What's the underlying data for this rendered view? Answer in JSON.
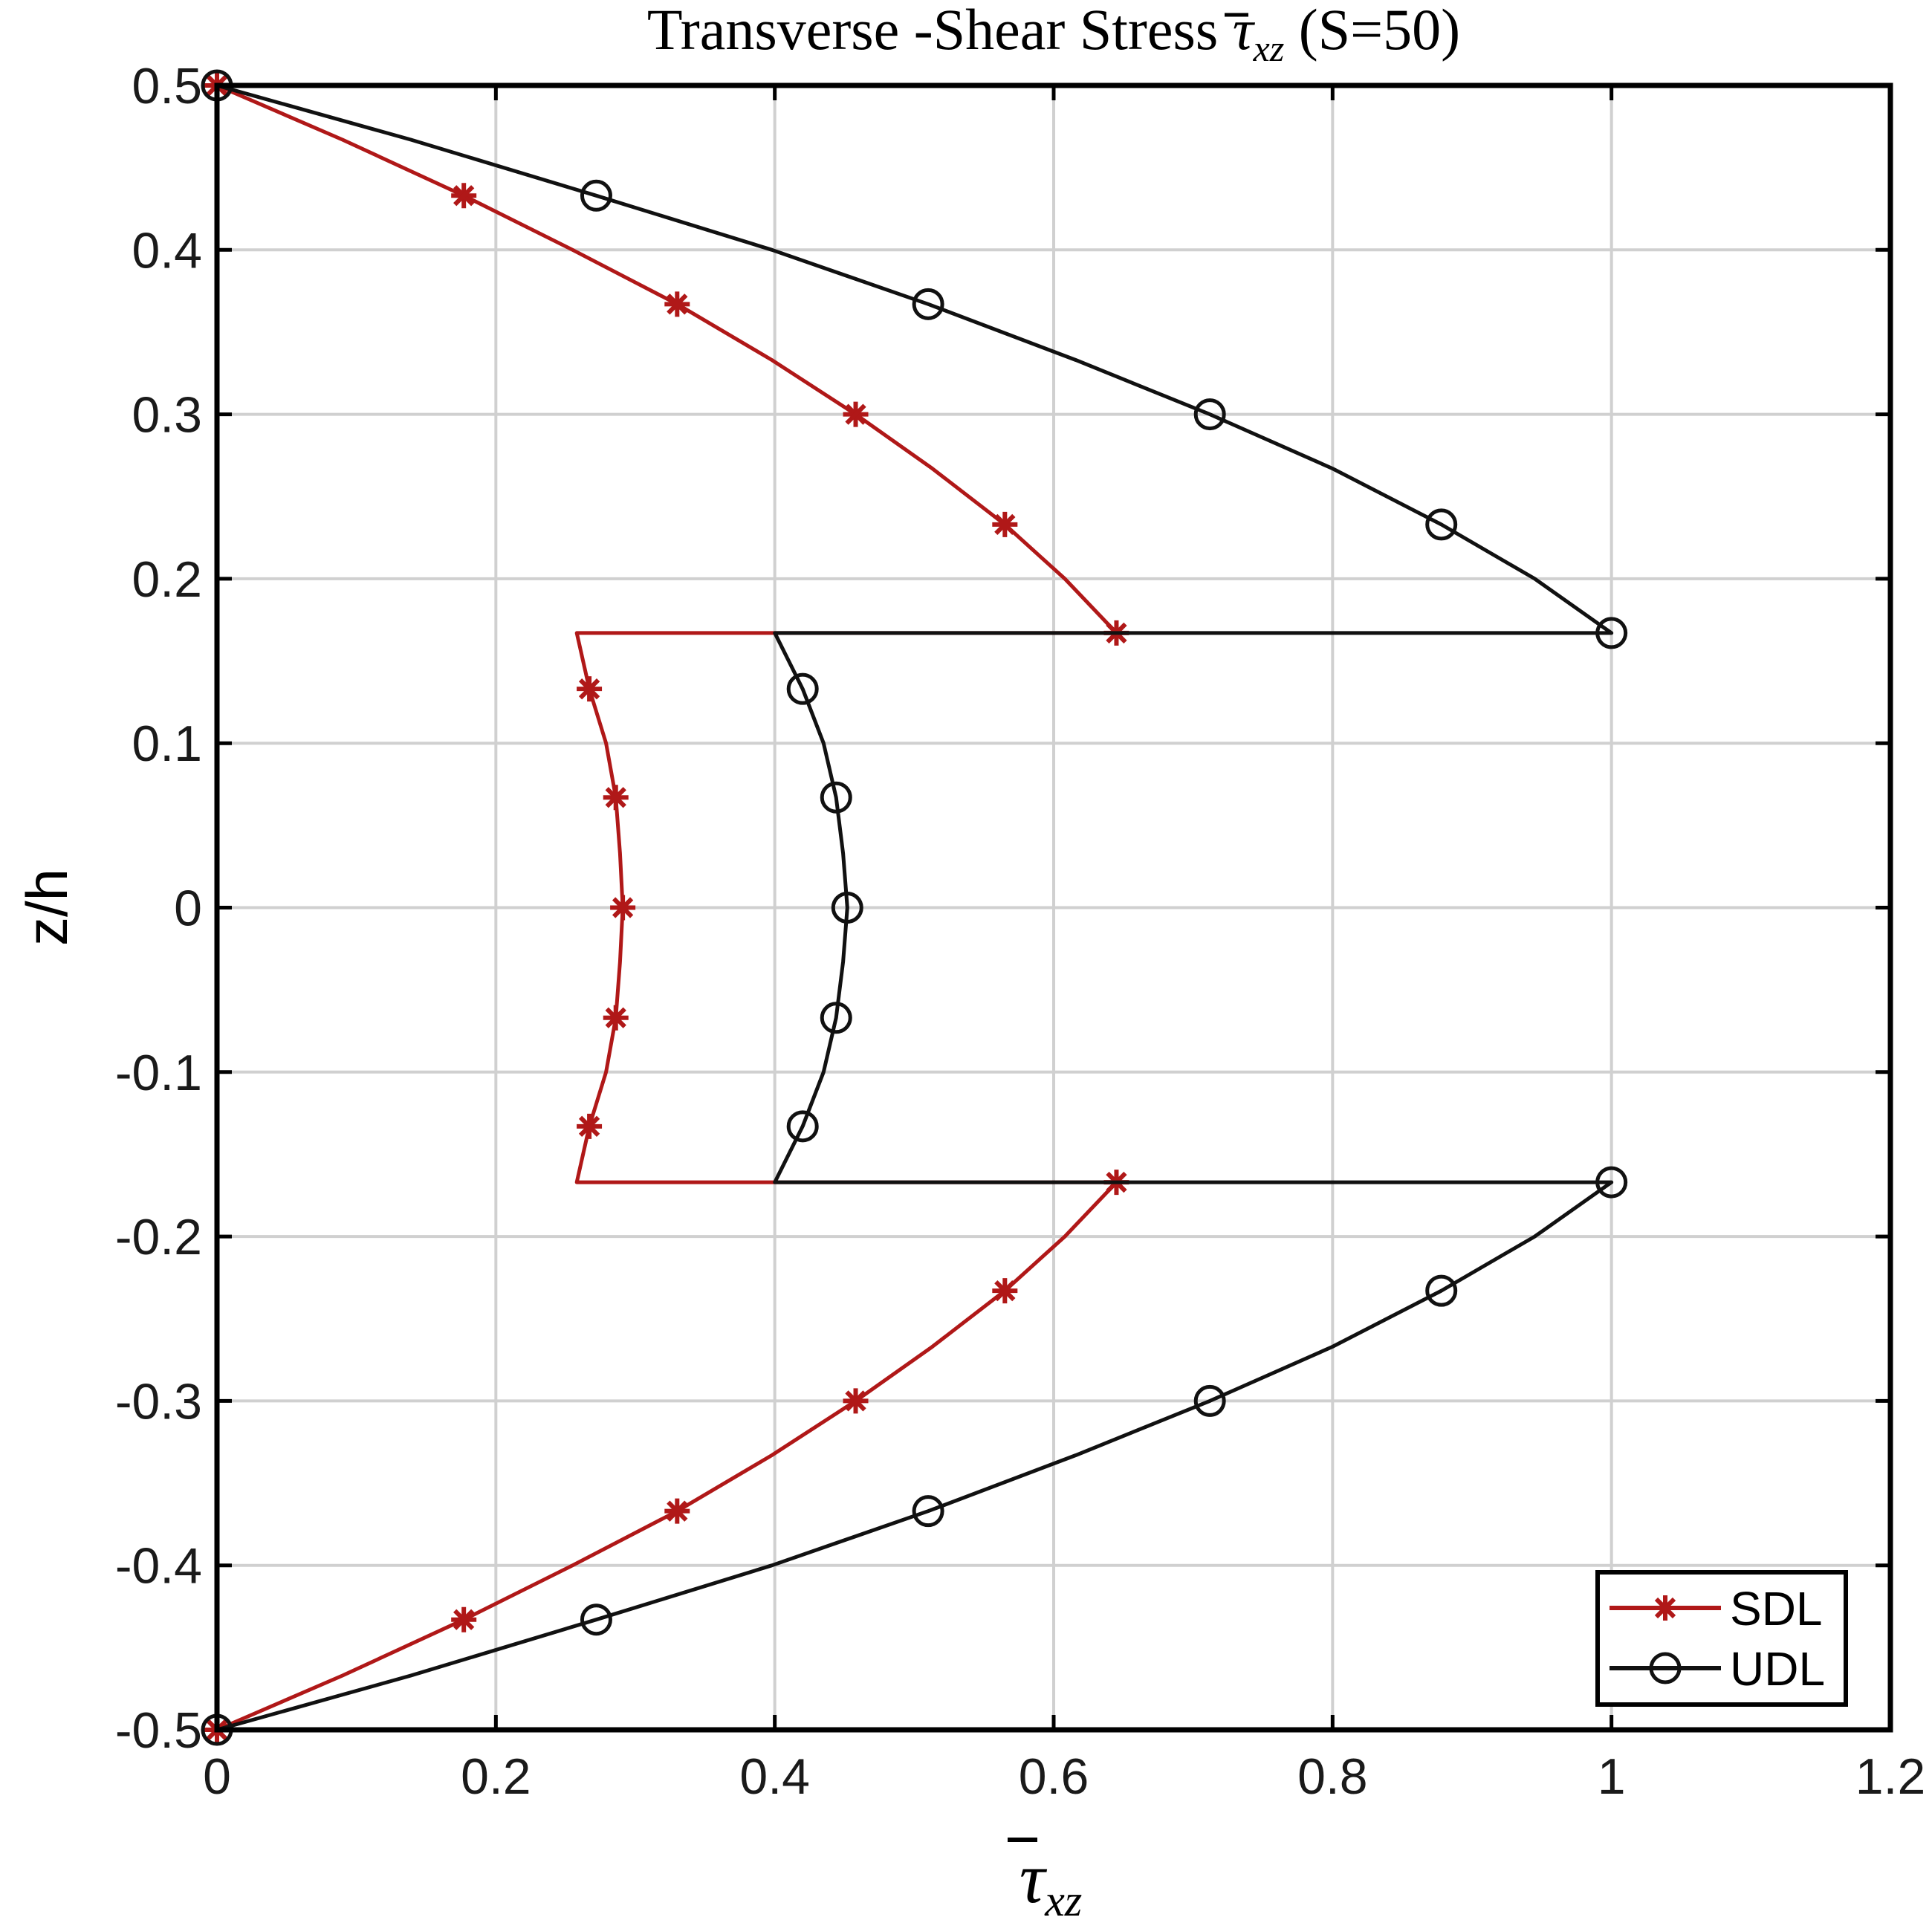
{
  "chart_data": {
    "type": "line",
    "title": {
      "prefix": "Transverse -Shear Stress ",
      "symbol": "τ",
      "subscript": "xz",
      "suffix": " (S=50)"
    },
    "xlabel": {
      "symbol": "τ",
      "subscript": "xz"
    },
    "ylabel": "z/h",
    "xlim": [
      0,
      1.2
    ],
    "ylim": [
      -0.5,
      0.5
    ],
    "xticks": [
      0,
      0.2,
      0.4,
      0.6,
      0.8,
      1,
      1.2
    ],
    "xtick_labels": [
      "0",
      "0.2",
      "0.4",
      "0.6",
      "0.8",
      "1",
      "1.2"
    ],
    "yticks": [
      -0.5,
      -0.4,
      -0.3,
      -0.2,
      -0.1,
      0,
      0.1,
      0.2,
      0.3,
      0.4,
      0.5
    ],
    "ytick_labels": [
      "-0.5",
      "-0.4",
      "-0.3",
      "-0.2",
      "-0.1",
      "0",
      "0.1",
      "0.2",
      "0.3",
      "0.4",
      "0.5"
    ],
    "grid": true,
    "legend_position": "bottom-right",
    "series": [
      {
        "name": "SDL",
        "color": "#b01818",
        "marker": "star",
        "line": [
          [
            0,
            0.5
          ],
          [
            0.09,
            0.467
          ],
          [
            0.177,
            0.433
          ],
          [
            0.255,
            0.4
          ],
          [
            0.33,
            0.367
          ],
          [
            0.398,
            0.333
          ],
          [
            0.458,
            0.3
          ],
          [
            0.513,
            0.267
          ],
          [
            0.565,
            0.233
          ],
          [
            0.608,
            0.2
          ],
          [
            0.645,
            0.167
          ],
          [
            0.258,
            0.167
          ],
          [
            0.267,
            0.133
          ],
          [
            0.279,
            0.1
          ],
          [
            0.286,
            0.067
          ],
          [
            0.289,
            0.033
          ],
          [
            0.291,
            0
          ],
          [
            0.289,
            -0.033
          ],
          [
            0.286,
            -0.067
          ],
          [
            0.279,
            -0.1
          ],
          [
            0.267,
            -0.133
          ],
          [
            0.258,
            -0.167
          ],
          [
            0.645,
            -0.167
          ],
          [
            0.608,
            -0.2
          ],
          [
            0.565,
            -0.233
          ],
          [
            0.513,
            -0.267
          ],
          [
            0.458,
            -0.3
          ],
          [
            0.398,
            -0.333
          ],
          [
            0.33,
            -0.367
          ],
          [
            0.255,
            -0.4
          ],
          [
            0.177,
            -0.433
          ],
          [
            0.09,
            -0.467
          ],
          [
            0,
            -0.5
          ]
        ],
        "markers": [
          [
            0,
            0.5
          ],
          [
            0.177,
            0.433
          ],
          [
            0.33,
            0.367
          ],
          [
            0.458,
            0.3
          ],
          [
            0.565,
            0.233
          ],
          [
            0.645,
            0.167
          ],
          [
            0.267,
            0.133
          ],
          [
            0.286,
            0.067
          ],
          [
            0.291,
            0
          ],
          [
            0.286,
            -0.067
          ],
          [
            0.267,
            -0.133
          ],
          [
            0.645,
            -0.167
          ],
          [
            0.565,
            -0.233
          ],
          [
            0.458,
            -0.3
          ],
          [
            0.33,
            -0.367
          ],
          [
            0.177,
            -0.433
          ],
          [
            0,
            -0.5
          ]
        ]
      },
      {
        "name": "UDL",
        "color": "#111111",
        "marker": "circle",
        "line": [
          [
            0,
            0.5
          ],
          [
            0.139,
            0.467
          ],
          [
            0.272,
            0.433
          ],
          [
            0.398,
            0.4
          ],
          [
            0.51,
            0.367
          ],
          [
            0.616,
            0.333
          ],
          [
            0.712,
            0.3
          ],
          [
            0.8,
            0.267
          ],
          [
            0.878,
            0.233
          ],
          [
            0.945,
            0.2
          ],
          [
            1.0,
            0.167
          ],
          [
            0.4,
            0.167
          ],
          [
            0.42,
            0.133
          ],
          [
            0.435,
            0.1
          ],
          [
            0.444,
            0.067
          ],
          [
            0.449,
            0.033
          ],
          [
            0.452,
            0
          ],
          [
            0.449,
            -0.033
          ],
          [
            0.444,
            -0.067
          ],
          [
            0.435,
            -0.1
          ],
          [
            0.42,
            -0.133
          ],
          [
            0.4,
            -0.167
          ],
          [
            1.0,
            -0.167
          ],
          [
            0.945,
            -0.2
          ],
          [
            0.878,
            -0.233
          ],
          [
            0.8,
            -0.267
          ],
          [
            0.712,
            -0.3
          ],
          [
            0.616,
            -0.333
          ],
          [
            0.51,
            -0.367
          ],
          [
            0.398,
            -0.4
          ],
          [
            0.272,
            -0.433
          ],
          [
            0.139,
            -0.467
          ],
          [
            0,
            -0.5
          ]
        ],
        "markers": [
          [
            0,
            0.5
          ],
          [
            0.272,
            0.433
          ],
          [
            0.51,
            0.367
          ],
          [
            0.712,
            0.3
          ],
          [
            0.878,
            0.233
          ],
          [
            1.0,
            0.167
          ],
          [
            0.42,
            0.133
          ],
          [
            0.444,
            0.067
          ],
          [
            0.452,
            0
          ],
          [
            0.444,
            -0.067
          ],
          [
            0.42,
            -0.133
          ],
          [
            1.0,
            -0.167
          ],
          [
            0.878,
            -0.233
          ],
          [
            0.712,
            -0.3
          ],
          [
            0.51,
            -0.367
          ],
          [
            0.272,
            -0.433
          ],
          [
            0,
            -0.5
          ]
        ]
      }
    ]
  }
}
